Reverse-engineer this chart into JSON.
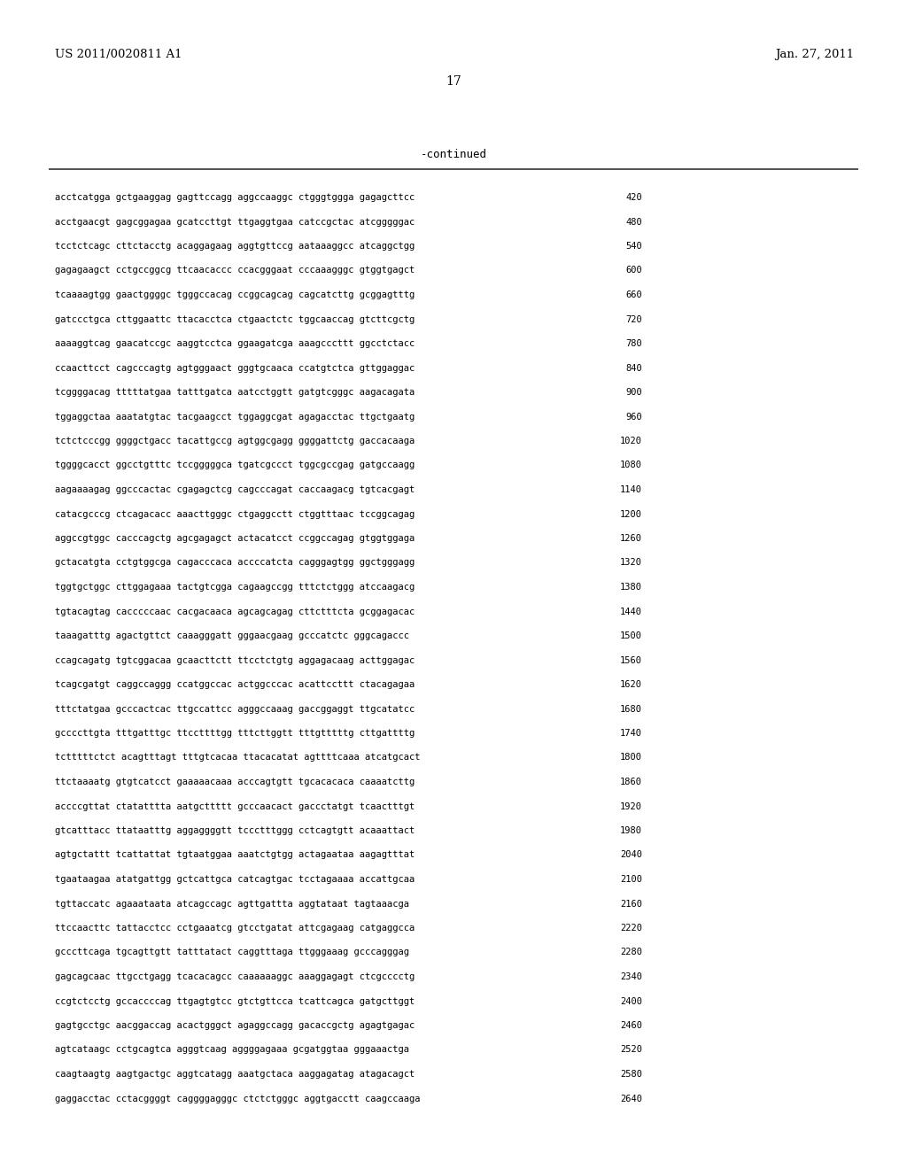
{
  "patent_number": "US 2011/0020811 A1",
  "date": "Jan. 27, 2011",
  "page_number": "17",
  "continued_label": "-continued",
  "background_color": "#ffffff",
  "text_color": "#000000",
  "sequence_lines": [
    [
      "acctcatgga gctgaaggag gagttccagg aggccaaggc ctgggtggga gagagcttcc",
      "420"
    ],
    [
      "acctgaacgt gagcggagaa gcatccttgt ttgaggtgaa catccgctac atcgggggac",
      "480"
    ],
    [
      "tcctctcagc cttctacctg acaggagaag aggtgttccg aataaaggcc atcaggctgg",
      "540"
    ],
    [
      "gagagaagct cctgccggcg ttcaacaccc ccacgggaat cccaaagggc gtggtgagct",
      "600"
    ],
    [
      "tcaaaagtgg gaactggggc tgggccacag ccggcagcag cagcatcttg gcggagtttg",
      "660"
    ],
    [
      "gatccctgca cttggaattc ttacacctca ctgaactctc tggcaaccag gtcttcgctg",
      "720"
    ],
    [
      "aaaaggtcag gaacatccgc aaggtcctca ggaagatcga aaagcccttt ggcctctacc",
      "780"
    ],
    [
      "ccaacttcct cagcccagtg agtgggaact gggtgcaaca ccatgtctca gttggaggac",
      "840"
    ],
    [
      "tcggggacag tttttatgaa tatttgatca aatcctggtt gatgtcgggc aagacagata",
      "900"
    ],
    [
      "tggaggctaa aaatatgtac tacgaagcct tggaggcgat agagacctac ttgctgaatg",
      "960"
    ],
    [
      "tctctcccgg ggggctgacc tacattgccg agtggcgagg ggggattctg gaccacaaga",
      "1020"
    ],
    [
      "tggggcacct ggcctgtttc tccgggggca tgatcgccct tggcgccgag gatgccaagg",
      "1080"
    ],
    [
      "aagaaaagag ggcccactac cgagagctcg cagcccagat caccaagacg tgtcacgagt",
      "1140"
    ],
    [
      "catacgcccg ctcagacacc aaacttgggc ctgaggcctt ctggtttaac tccggcagag",
      "1200"
    ],
    [
      "aggccgtggc cacccagctg agcgagagct actacatcct ccggccagag gtggtggaga",
      "1260"
    ],
    [
      "gctacatgta cctgtggcga cagacccaca accccatcta cagggagtgg ggctgggagg",
      "1320"
    ],
    [
      "tggtgctggc cttggagaaa tactgtcgga cagaagccgg tttctctggg atccaagacg",
      "1380"
    ],
    [
      "tgtacagtag cacccccaac cacgacaaca agcagcagag cttctttcta gcggagacac",
      "1440"
    ],
    [
      "taaagatttg agactgttct caaagggatt gggaacgaag gcccatctc gggcagaccc",
      "1500"
    ],
    [
      "ccagcagatg tgtcggacaa gcaacttctt ttcctctgtg aggagacaag acttggagac",
      "1560"
    ],
    [
      "tcagcgatgt caggccaggg ccatggccac actggcccac acattccttt ctacagagaa",
      "1620"
    ],
    [
      "tttctatgaa gcccactcac ttgccattcc agggccaaag gaccggaggt ttgcatatcc",
      "1680"
    ],
    [
      "gccccttgta tttgatttgc ttccttttgg tttcttggtt tttgtttttg cttgattttg",
      "1740"
    ],
    [
      "tctttttctct acagtttagt tttgtcacaa ttacacatat agttttcaaa atcatgcact",
      "1800"
    ],
    [
      "ttctaaaatg gtgtcatcct gaaaaacaaa acccagtgtt tgcacacaca caaaatcttg",
      "1860"
    ],
    [
      "accccgttat ctatatttta aatgcttttt gcccaacact gaccctatgt tcaactttgt",
      "1920"
    ],
    [
      "gtcatttacc ttataatttg aggaggggtt tccctttggg cctcagtgtt acaaattact",
      "1980"
    ],
    [
      "agtgctattt tcattattat tgtaatggaa aaatctgtgg actagaataa aagagtttat",
      "2040"
    ],
    [
      "tgaataagaa atatgattgg gctcattgca catcagtgac tcctagaaaa accattgcaa",
      "2100"
    ],
    [
      "tgttaccatc agaaataata atcagccagc agttgattta aggtataat tagtaaacga",
      "2160"
    ],
    [
      "ttccaacttc tattacctcc cctgaaatcg gtcctgatat attcgagaag catgaggcca",
      "2220"
    ],
    [
      "gcccttcaga tgcagttgtt tatttatact caggtttagа ttgggaaag gcccagggag",
      "2280"
    ],
    [
      "gagcagcaac ttgcctgagg tcacacagcc caaaaaaggc aaaggagagt ctcgcccctg",
      "2340"
    ],
    [
      "ccgtctcctg gccaccccag ttgagtgtcc gtctgttcca tcattcagca gatgcttggt",
      "2400"
    ],
    [
      "gagtgcctgc aacggaccag acactgggct agaggccagg gacaccgctg agagtgagac",
      "2460"
    ],
    [
      "agtcataagc cctgcagtca agggtcaag aggggagaaa gcgatggtaa gggaaactga",
      "2520"
    ],
    [
      "caagtaagtg aagtgactgc aggtcatagg aaatgctaca aaggagatag atagacagct",
      "2580"
    ],
    [
      "gaggacctac cctacggggt caggggagggc ctctctgggc aggtgacctt caagccaaga",
      "2640"
    ]
  ],
  "header_font_size": 9.5,
  "page_num_font_size": 10,
  "continued_font_size": 9.0,
  "seq_font_size": 7.5,
  "line_color": "#333333"
}
